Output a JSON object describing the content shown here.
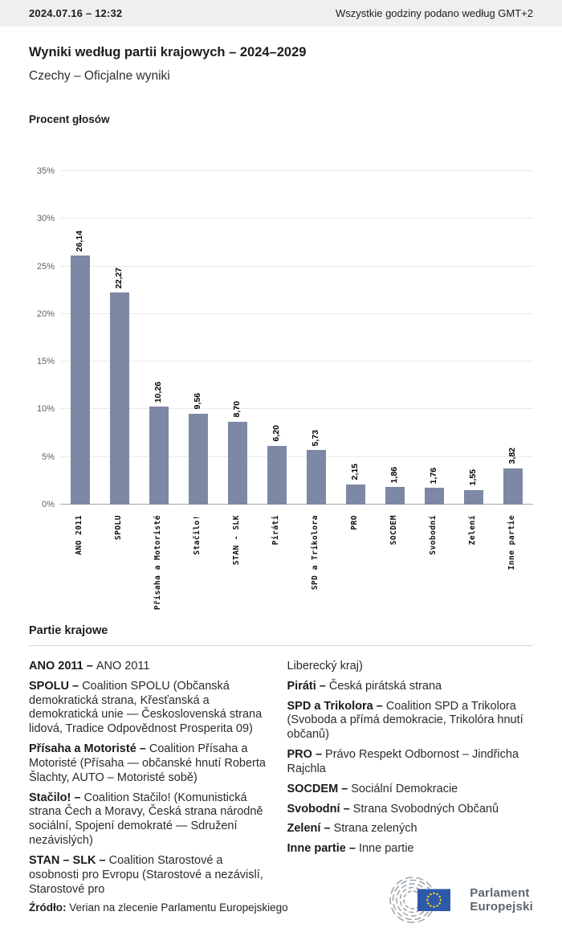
{
  "header": {
    "datetime": "2024.07.16 – 12:32",
    "timezone_note": "Wszystkie godziny podano według GMT+2"
  },
  "title": "Wyniki według partii krajowych – 2024–2029",
  "subtitle": "Czechy – Oficjalne wyniki",
  "chart_data": {
    "type": "bar",
    "title": "Procent głosów",
    "categories": [
      "ANO 2011",
      "SPOLU",
      "Přísaha a Motoristé",
      "Stačilo!",
      "STAN - SLK",
      "Piráti",
      "SPD a Trikolora",
      "PRO",
      "SOCDEM",
      "Svobodní",
      "Zelení",
      "Inne partie"
    ],
    "values": [
      26.14,
      22.27,
      10.26,
      9.56,
      8.7,
      6.2,
      5.73,
      2.15,
      1.86,
      1.76,
      1.55,
      3.82
    ],
    "value_labels": [
      "26,14",
      "22,27",
      "10,26",
      "9,56",
      "8,70",
      "6,20",
      "5,73",
      "2,15",
      "1,86",
      "1,76",
      "1,55",
      "3,82"
    ],
    "xlabel": "",
    "ylabel": "Procent głosów",
    "ylim": [
      0,
      35
    ],
    "ytick_step": 5,
    "ytick_suffix": "%",
    "grid": true,
    "legend_position": "none",
    "bar_color": "#7d88a4"
  },
  "parties_section": {
    "heading": "Partie krajowe",
    "left_column": [
      {
        "term": "ANO 2011 –",
        "def": "ANO 2011"
      },
      {
        "term": "SPOLU –",
        "def": "Coalition SPOLU (Občanská demokratická strana, Křesťanská a demokratická unie — Československá strana lidová, Tradice Odpovědnost Prosperita 09)"
      },
      {
        "term": "Přísaha a Motoristé –",
        "def": "Coalition Přísaha a Motoristé (Přísaha — občanské hnutí Roberta Šlachty, AUTO – Motoristé sobě)"
      },
      {
        "term": "Stačilo! –",
        "def": "Coalition Stačilo! (Komunistická strana Čech a Moravy, Česká strana národně sociální, Spojení demokraté — Sdružení nezávislých)"
      },
      {
        "term": "STAN – SLK –",
        "def": "Coalition Starostové a osobnosti pro Evropu (Starostové a nezávislí, Starostové pro"
      }
    ],
    "right_column": [
      {
        "term": "",
        "def": "Liberecký kraj)"
      },
      {
        "term": "Piráti –",
        "def": "Česká pirátská strana"
      },
      {
        "term": "SPD a Trikolora –",
        "def": "Coalition SPD a Trikolora (Svoboda a přímá demokracie, Trikolóra hnutí občanů)"
      },
      {
        "term": "PRO –",
        "def": "Právo Respekt Odbornost – Jindřicha Rajchla"
      },
      {
        "term": "SOCDEM –",
        "def": "Sociální Demokracie"
      },
      {
        "term": "Svobodní –",
        "def": "Strana Svobodných Občanů"
      },
      {
        "term": "Zelení –",
        "def": "Strana zelených"
      },
      {
        "term": "Inne partie –",
        "def": "Inne partie"
      }
    ]
  },
  "footer": {
    "source_label": "Źródło:",
    "source_text": "Verian na zlecenie Parlamentu Europejskiego",
    "logo_line1": "Parlament",
    "logo_line2": "Europejski"
  },
  "colors": {
    "bar": "#7d88a4",
    "topbar_bg": "#efefef",
    "gridline": "#e9e9e9",
    "zero_line": "#a9a9a9",
    "eu_flag_blue": "#2d59a7",
    "eu_star_yellow": "#f8d12e",
    "logo_gray": "#5c666e"
  }
}
